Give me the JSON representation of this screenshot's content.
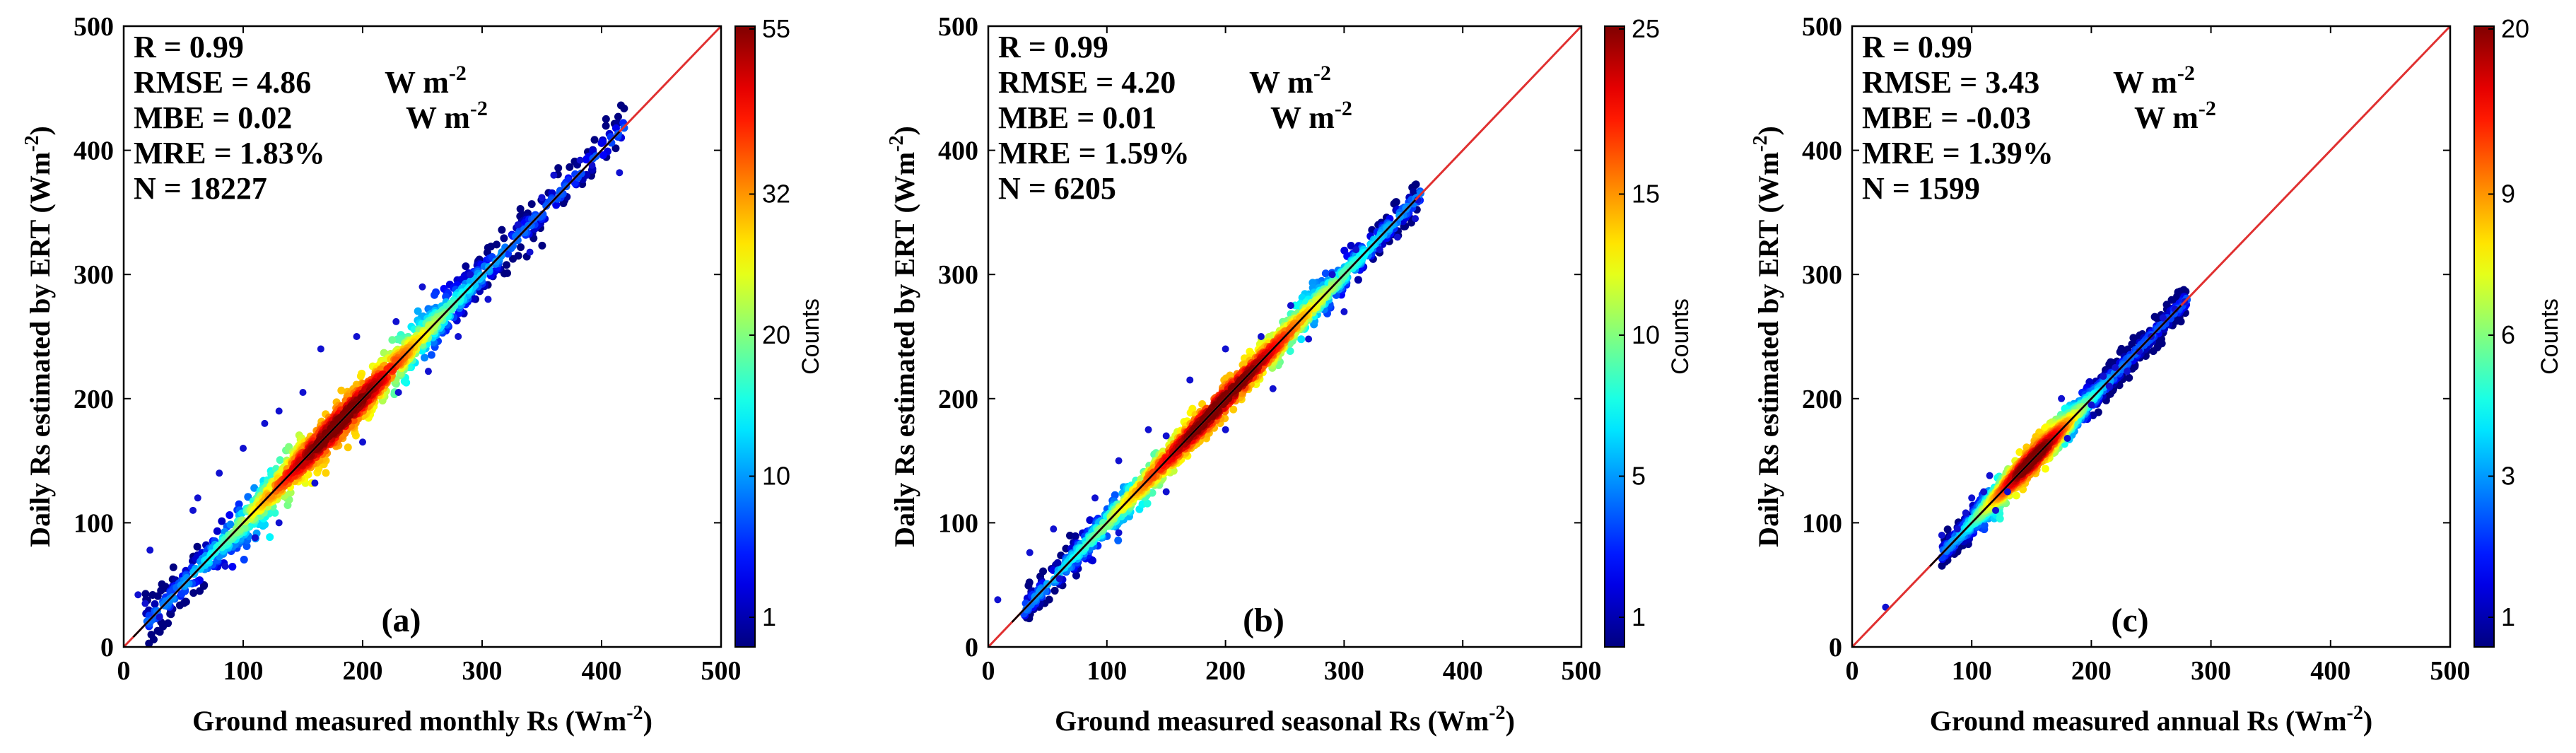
{
  "chart_data": [
    {
      "type": "scatter",
      "panel_label": "(a)",
      "title": "",
      "xlabel_prefix": "Ground measured monthly Rs (Wm",
      "ylabel_prefix": "Daily Rs estimated by ERT (Wm",
      "unit_exponent": "-2",
      "xlim": [
        0,
        500
      ],
      "ylim": [
        0,
        500
      ],
      "xticks": [
        "0",
        "100",
        "200",
        "300",
        "400",
        "500"
      ],
      "yticks": [
        "0",
        "100",
        "200",
        "300",
        "400",
        "500"
      ],
      "stats": {
        "r": "R = 0.99",
        "rmse": "RMSE = 4.86",
        "mbe": "MBE = 0.02",
        "mre": "MRE = 1.83%",
        "n": "N = 18227",
        "unit": "W m",
        "unit_exp": "-2"
      },
      "colorbar": {
        "label": "Counts",
        "min": "1",
        "max": "55",
        "ticks": [
          "1",
          "10",
          "20",
          "32",
          "55"
        ]
      },
      "data_range": [
        18,
        420
      ],
      "spread": 9,
      "density_peak": 180,
      "density_width": 70,
      "scatter_points": [
        [
          12,
          42
        ],
        [
          18,
          35
        ],
        [
          22,
          78
        ],
        [
          30,
          24
        ],
        [
          58,
          110
        ],
        [
          62,
          120
        ],
        [
          80,
          140
        ],
        [
          100,
          160
        ],
        [
          118,
          180
        ],
        [
          130,
          190
        ],
        [
          150,
          205
        ],
        [
          165,
          240
        ],
        [
          195,
          250
        ],
        [
          228,
          262
        ],
        [
          250,
          290
        ],
        [
          290,
          300
        ],
        [
          330,
          340
        ],
        [
          350,
          362
        ],
        [
          360,
          380
        ],
        [
          415,
          382
        ],
        [
          382,
          392
        ],
        [
          392,
          388
        ],
        [
          200,
          165
        ],
        [
          230,
          205
        ],
        [
          255,
          222
        ],
        [
          280,
          250
        ],
        [
          305,
          280
        ],
        [
          340,
          318
        ],
        [
          160,
          132
        ],
        [
          130,
          100
        ],
        [
          110,
          88
        ],
        [
          85,
          65
        ]
      ]
    },
    {
      "type": "scatter",
      "panel_label": "(b)",
      "title": "",
      "xlabel_prefix": "Ground measured seasonal Rs (Wm",
      "ylabel_prefix": "Daily Rs estimated by ERT (Wm",
      "unit_exponent": "-2",
      "xlim": [
        0,
        500
      ],
      "ylim": [
        0,
        500
      ],
      "xticks": [
        "0",
        "100",
        "200",
        "300",
        "400",
        "500"
      ],
      "yticks": [
        "0",
        "100",
        "200",
        "300",
        "400",
        "500"
      ],
      "stats": {
        "r": "R = 0.99",
        "rmse": "RMSE = 4.20",
        "mbe": "MBE = 0.01",
        "mre": "MRE = 1.59%",
        "n": "N = 6205",
        "unit": "W m",
        "unit_exp": "-2"
      },
      "colorbar": {
        "label": "Counts",
        "min": "1",
        "max": "25",
        "ticks": [
          "1",
          "5",
          "10",
          "15",
          "25"
        ]
      },
      "data_range": [
        30,
        365
      ],
      "spread": 7,
      "density_peak": 195,
      "density_width": 80,
      "scatter_points": [
        [
          8,
          38
        ],
        [
          35,
          76
        ],
        [
          55,
          95
        ],
        [
          60,
          55
        ],
        [
          90,
          120
        ],
        [
          110,
          150
        ],
        [
          135,
          175
        ],
        [
          150,
          170
        ],
        [
          170,
          215
        ],
        [
          200,
          240
        ],
        [
          230,
          250
        ],
        [
          255,
          275
        ],
        [
          290,
          300
        ],
        [
          310,
          320
        ],
        [
          330,
          320
        ],
        [
          345,
          330
        ],
        [
          360,
          345
        ],
        [
          362,
          360
        ],
        [
          240,
          208
        ],
        [
          270,
          248
        ],
        [
          300,
          270
        ],
        [
          200,
          175
        ],
        [
          150,
          125
        ],
        [
          110,
          92
        ]
      ]
    },
    {
      "type": "scatter",
      "panel_label": "(c)",
      "title": "",
      "xlabel_prefix": "Ground measured annual Rs (Wm",
      "ylabel_prefix": "Daily Rs estimated by ERT (Wm",
      "unit_exponent": "-2",
      "xlim": [
        0,
        500
      ],
      "ylim": [
        0,
        500
      ],
      "xticks": [
        "0",
        "100",
        "200",
        "300",
        "400",
        "500"
      ],
      "yticks": [
        "0",
        "100",
        "200",
        "300",
        "400",
        "500"
      ],
      "stats": {
        "r": "R = 0.99",
        "rmse": "RMSE = 3.43",
        "mbe": "MBE = -0.03",
        "mre": "MRE = 1.39%",
        "n": "N = 1599",
        "unit": "W m",
        "unit_exp": "-2"
      },
      "colorbar": {
        "label": "Counts",
        "min": "1",
        "max": "20",
        "ticks": [
          "1",
          "3",
          "6",
          "9",
          "20"
        ]
      },
      "data_range": [
        75,
        280
      ],
      "spread": 6,
      "density_peak": 150,
      "density_width": 35,
      "scatter_points": [
        [
          28,
          32
        ],
        [
          75,
          90
        ],
        [
          88,
          95
        ],
        [
          95,
          108
        ],
        [
          100,
          120
        ],
        [
          110,
          125
        ],
        [
          115,
          138
        ],
        [
          120,
          110
        ],
        [
          130,
          125
        ],
        [
          175,
          200
        ],
        [
          200,
          195
        ],
        [
          215,
          210
        ],
        [
          220,
          225
        ],
        [
          230,
          222
        ],
        [
          240,
          238
        ],
        [
          250,
          250
        ],
        [
          260,
          265
        ],
        [
          270,
          272
        ],
        [
          278,
          278
        ],
        [
          180,
          168
        ],
        [
          210,
          218
        ]
      ]
    }
  ]
}
